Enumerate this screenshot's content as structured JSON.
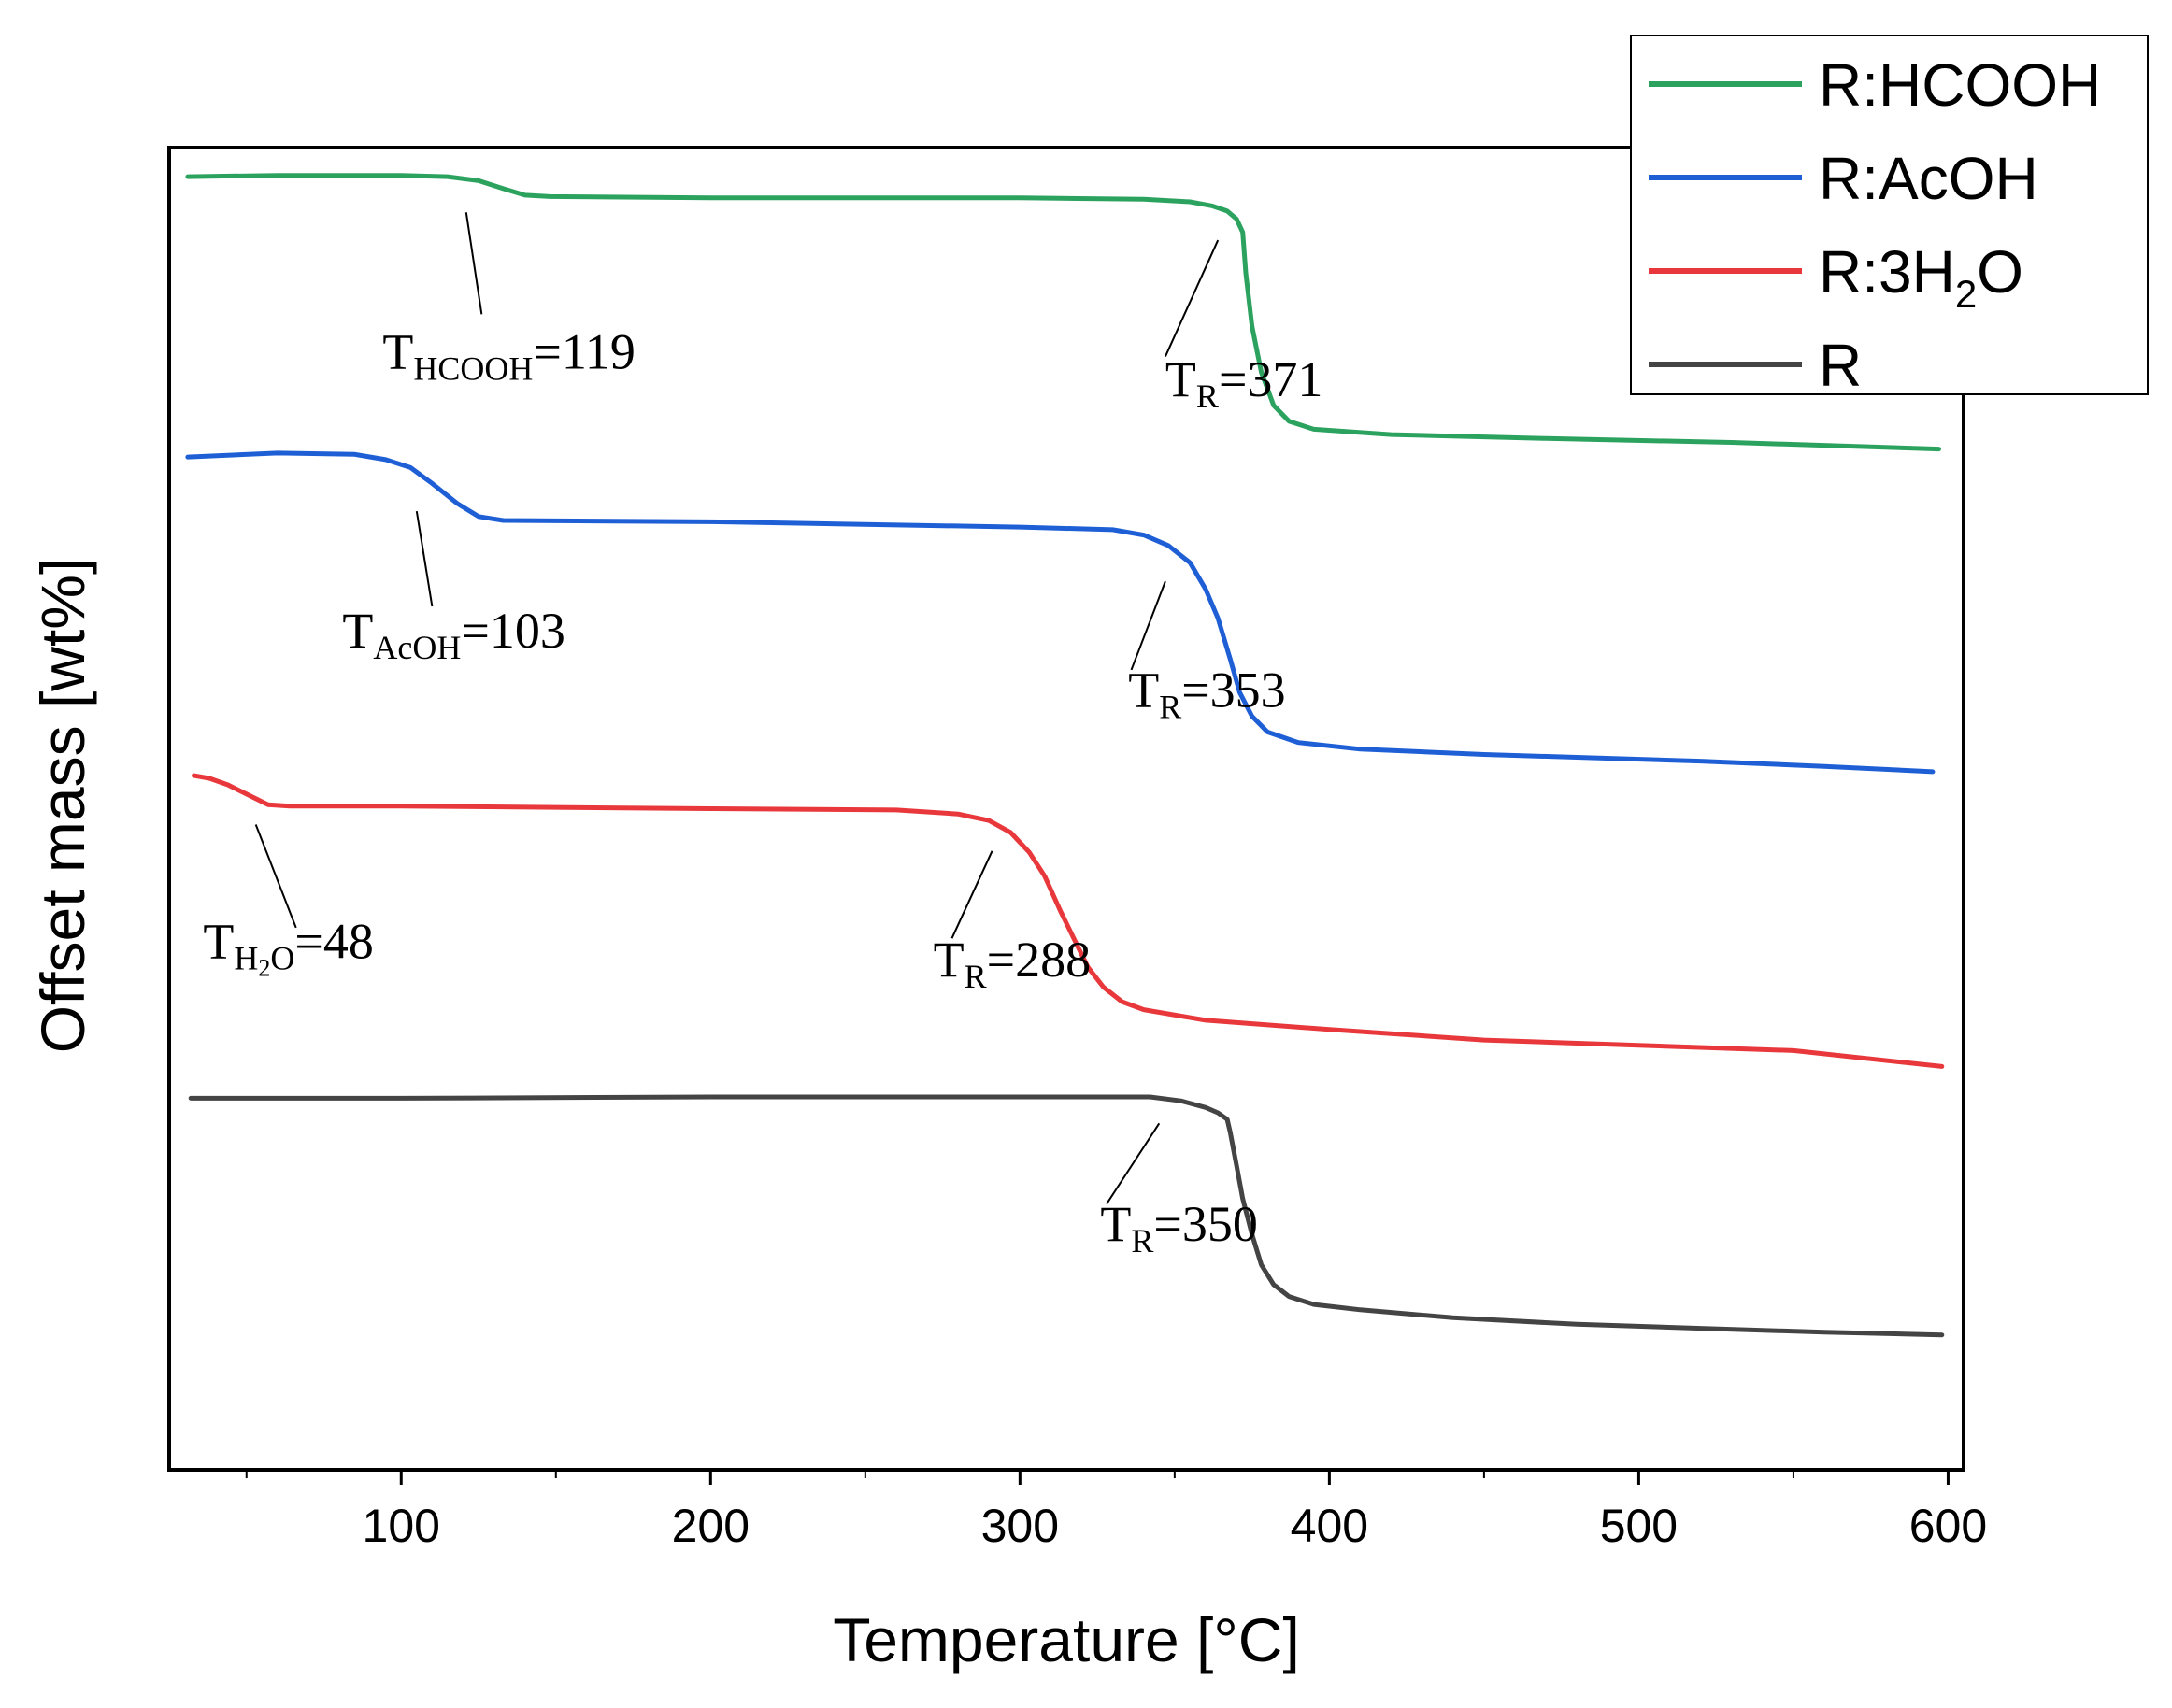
{
  "chart_data": {
    "type": "line",
    "xlabel": "Temperature [°C]",
    "ylabel": "Offset mass [wt%]",
    "xlim": [
      25,
      605
    ],
    "ylim": [
      0,
      100
    ],
    "x_ticks": [
      "100",
      "200",
      "300",
      "400",
      "500",
      "600"
    ],
    "x_tick_values": [
      100,
      200,
      300,
      400,
      500,
      600
    ],
    "x_minor_ticks": [
      50,
      150,
      250,
      350,
      450,
      550
    ],
    "legend_position": "top-right, overlapping plot frame",
    "series": [
      {
        "name": "R:HCOOH",
        "name_parts": {
          "main": "R:HCOOH",
          "sub": "",
          "tail": ""
        },
        "color": "#2ca25f",
        "points": [
          [
            31,
            97.8
          ],
          [
            60,
            97.9
          ],
          [
            100,
            97.9
          ],
          [
            115,
            97.8
          ],
          [
            125,
            97.5
          ],
          [
            133,
            96.9
          ],
          [
            140,
            96.4
          ],
          [
            148,
            96.3
          ],
          [
            200,
            96.2
          ],
          [
            300,
            96.2
          ],
          [
            340,
            96.1
          ],
          [
            355,
            95.9
          ],
          [
            362,
            95.6
          ],
          [
            367,
            95.2
          ],
          [
            370,
            94.6
          ],
          [
            372,
            93.6
          ],
          [
            373,
            90.5
          ],
          [
            375,
            86.5
          ],
          [
            378,
            83.0
          ],
          [
            382,
            80.5
          ],
          [
            387,
            79.3
          ],
          [
            395,
            78.7
          ],
          [
            420,
            78.3
          ],
          [
            470,
            78.0
          ],
          [
            530,
            77.7
          ],
          [
            597,
            77.2
          ]
        ]
      },
      {
        "name": "R:AcOH",
        "name_parts": {
          "main": "R:AcOH",
          "sub": "",
          "tail": ""
        },
        "color": "#1f5fd6",
        "points": [
          [
            31,
            76.6
          ],
          [
            60,
            76.9
          ],
          [
            85,
            76.8
          ],
          [
            95,
            76.4
          ],
          [
            103,
            75.8
          ],
          [
            110,
            74.6
          ],
          [
            118,
            73.1
          ],
          [
            125,
            72.1
          ],
          [
            133,
            71.8
          ],
          [
            200,
            71.7
          ],
          [
            300,
            71.3
          ],
          [
            330,
            71.1
          ],
          [
            340,
            70.7
          ],
          [
            348,
            69.9
          ],
          [
            355,
            68.6
          ],
          [
            360,
            66.6
          ],
          [
            364,
            64.4
          ],
          [
            368,
            61.3
          ],
          [
            371,
            58.8
          ],
          [
            375,
            57.0
          ],
          [
            380,
            55.8
          ],
          [
            390,
            55.0
          ],
          [
            410,
            54.5
          ],
          [
            450,
            54.1
          ],
          [
            520,
            53.6
          ],
          [
            560,
            53.2
          ],
          [
            595,
            52.8
          ]
        ]
      },
      {
        "name": "R:3H₂O",
        "name_parts": {
          "main": "R:3H",
          "sub": "2",
          "tail": "O"
        },
        "color": "#e8383b",
        "points": [
          [
            33,
            52.5
          ],
          [
            38,
            52.3
          ],
          [
            44,
            51.8
          ],
          [
            50,
            51.1
          ],
          [
            57,
            50.3
          ],
          [
            64,
            50.2
          ],
          [
            100,
            50.2
          ],
          [
            200,
            50.0
          ],
          [
            260,
            49.9
          ],
          [
            280,
            49.6
          ],
          [
            290,
            49.1
          ],
          [
            297,
            48.2
          ],
          [
            303,
            46.7
          ],
          [
            308,
            44.9
          ],
          [
            313,
            42.3
          ],
          [
            318,
            39.9
          ],
          [
            322,
            38.0
          ],
          [
            327,
            36.5
          ],
          [
            333,
            35.4
          ],
          [
            340,
            34.8
          ],
          [
            360,
            34.0
          ],
          [
            400,
            33.3
          ],
          [
            450,
            32.5
          ],
          [
            500,
            32.1
          ],
          [
            550,
            31.7
          ],
          [
            598,
            30.5
          ]
        ]
      },
      {
        "name": "R",
        "name_parts": {
          "main": "R",
          "sub": "",
          "tail": ""
        },
        "color": "#444444",
        "points": [
          [
            32,
            28.1
          ],
          [
            100,
            28.1
          ],
          [
            200,
            28.2
          ],
          [
            300,
            28.2
          ],
          [
            342,
            28.2
          ],
          [
            352,
            27.9
          ],
          [
            360,
            27.4
          ],
          [
            364,
            27.0
          ],
          [
            367,
            26.5
          ],
          [
            368,
            25.5
          ],
          [
            370,
            23.0
          ],
          [
            372,
            20.5
          ],
          [
            375,
            17.8
          ],
          [
            378,
            15.5
          ],
          [
            382,
            14.0
          ],
          [
            387,
            13.1
          ],
          [
            395,
            12.5
          ],
          [
            410,
            12.1
          ],
          [
            440,
            11.5
          ],
          [
            480,
            11.0
          ],
          [
            520,
            10.7
          ],
          [
            560,
            10.4
          ],
          [
            598,
            10.2
          ]
        ]
      }
    ],
    "annotations": [
      {
        "main": "T",
        "sub": "HCOOH",
        "subsub": "",
        "subtail": "",
        "tail": "=119",
        "x": 94,
        "y": 83.3,
        "pointer_from": [
          121,
          95.1
        ],
        "pointer_to": [
          126,
          87.4
        ]
      },
      {
        "main": "T",
        "sub": "R",
        "subsub": "",
        "subtail": "",
        "tail": "=371",
        "x": 347,
        "y": 81.2,
        "pointer_from": [
          364,
          93.0
        ],
        "pointer_to": [
          347,
          84.2
        ]
      },
      {
        "main": "T",
        "sub": "AcOH",
        "subsub": "",
        "subtail": "",
        "tail": "=103",
        "x": 81,
        "y": 62.2,
        "pointer_from": [
          105,
          72.5
        ],
        "pointer_to": [
          110,
          65.3
        ]
      },
      {
        "main": "T",
        "sub": "R",
        "subsub": "",
        "subtail": "",
        "tail": "=353",
        "x": 335,
        "y": 57.7,
        "pointer_from": [
          347,
          67.2
        ],
        "pointer_to": [
          336,
          60.5
        ]
      },
      {
        "main": "T",
        "sub": "H",
        "subsub": "2",
        "subtail": "O",
        "tail": "=48",
        "x": 36,
        "y": 38.7,
        "pointer_from": [
          53,
          48.8
        ],
        "pointer_to": [
          66,
          41.0
        ]
      },
      {
        "main": "T",
        "sub": "R",
        "subsub": "",
        "subtail": "",
        "tail": "=288",
        "x": 272,
        "y": 37.3,
        "pointer_from": [
          291,
          46.8
        ],
        "pointer_to": [
          278,
          40.2
        ]
      },
      {
        "main": "T",
        "sub": "R",
        "subsub": "",
        "subtail": "",
        "tail": "=350",
        "x": 326,
        "y": 17.3,
        "pointer_from": [
          345,
          26.2
        ],
        "pointer_to": [
          328,
          20.1
        ]
      }
    ]
  }
}
